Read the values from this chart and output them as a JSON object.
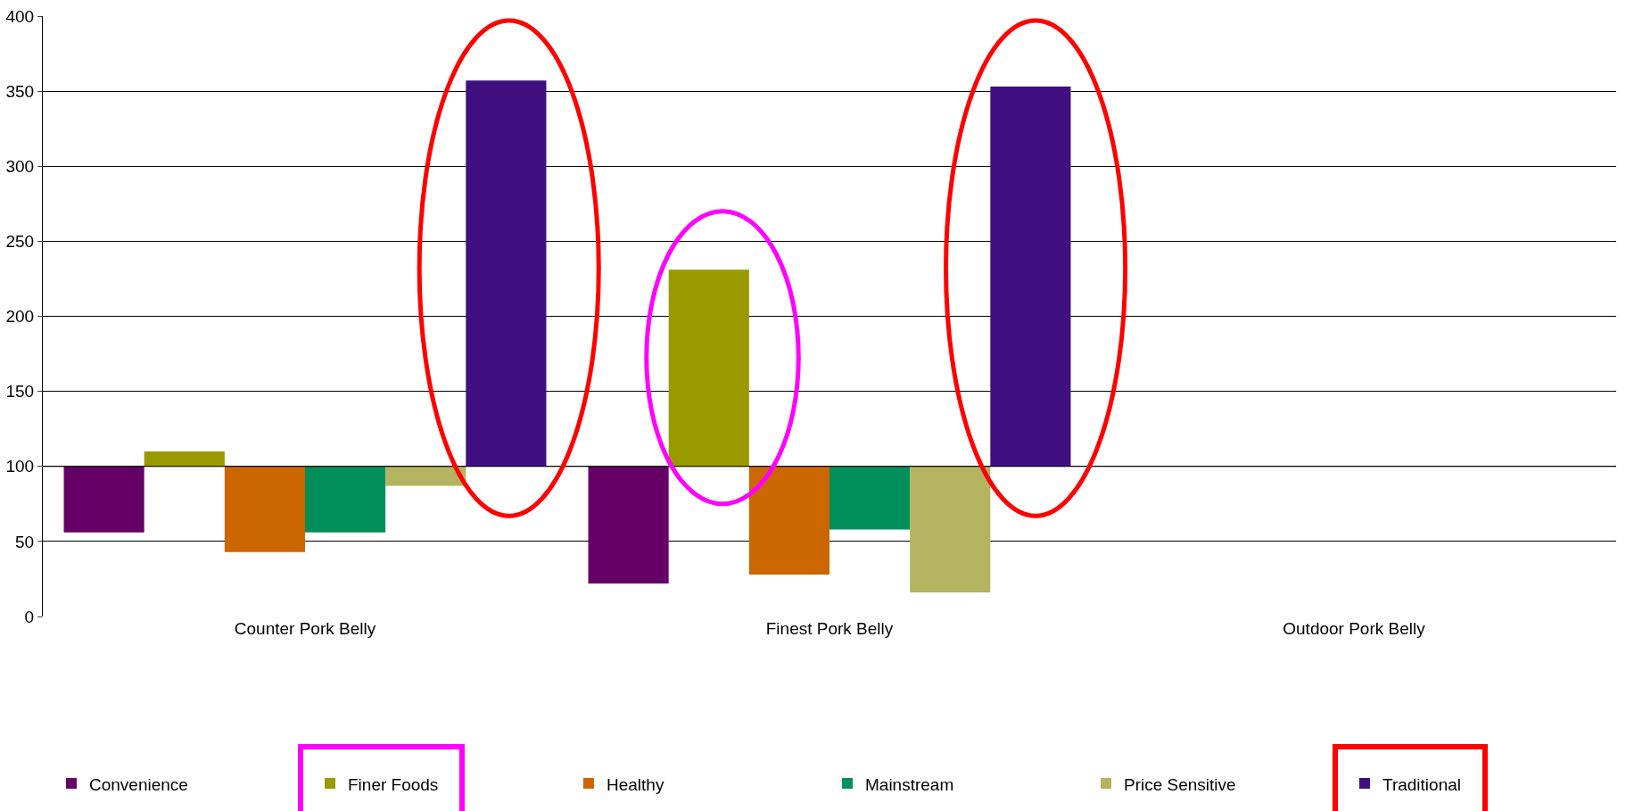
{
  "chart_data": {
    "type": "bar",
    "categories": [
      "Counter Pork Belly",
      "Finest Pork Belly",
      "Outdoor Pork Belly"
    ],
    "series": [
      {
        "name": "Convenience",
        "color": "#660066",
        "base": [
          100,
          100,
          null
        ],
        "values": [
          -44,
          -78,
          null
        ]
      },
      {
        "name": "Finer Foods",
        "color": "#999900",
        "base": [
          100,
          100,
          null
        ],
        "values": [
          10,
          131,
          null
        ]
      },
      {
        "name": "Healthy",
        "color": "#cc6600",
        "base": [
          100,
          100,
          null
        ],
        "values": [
          -57,
          -72,
          null
        ]
      },
      {
        "name": "Mainstream",
        "color": "#008f5a",
        "base": [
          100,
          100,
          null
        ],
        "values": [
          -44,
          -42,
          null
        ]
      },
      {
        "name": "Price Sensitive",
        "color": "#b3b360",
        "base": [
          100,
          100,
          null
        ],
        "values": [
          -13,
          -84,
          null
        ]
      },
      {
        "name": "Traditional",
        "color": "#400f80",
        "base": [
          100,
          100,
          null
        ],
        "values": [
          257,
          253,
          null
        ]
      }
    ],
    "ylim": [
      0,
      400
    ],
    "yticks": [
      0,
      50,
      100,
      150,
      200,
      250,
      300,
      350,
      400
    ],
    "grid": "y",
    "legend": "bottom"
  }
}
